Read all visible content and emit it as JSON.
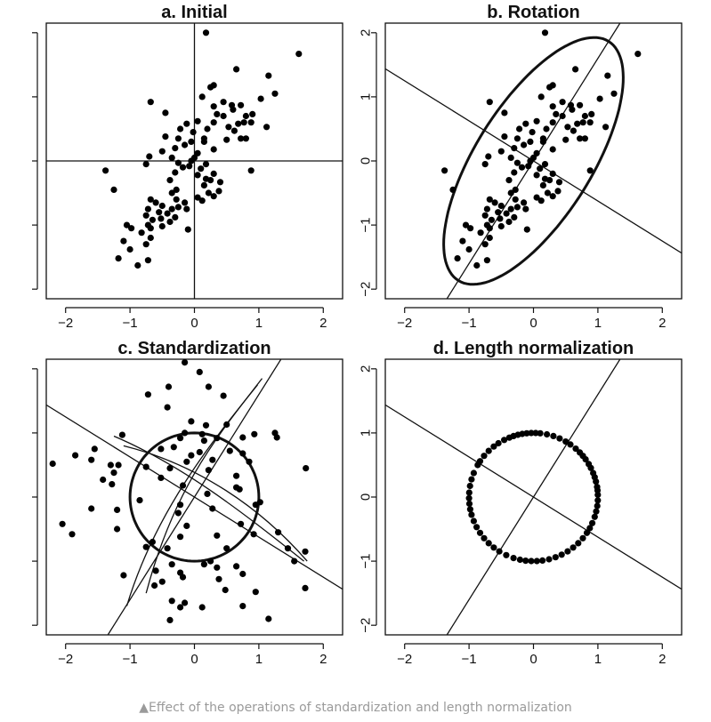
{
  "caption": "▲Effect of the operations of standardization and length normalization",
  "chart_data": [
    {
      "type": "scatter",
      "title": "a. Initial",
      "xlim": [
        -2.3,
        2.3
      ],
      "ylim": [
        -2.15,
        2.15
      ],
      "x_ticks": [
        -2,
        -1,
        0,
        1,
        2
      ],
      "y_ticks": [
        -2,
        -1,
        0,
        1,
        2
      ],
      "x_tick_labels": [
        "−2",
        "−1",
        "0",
        "1",
        "2"
      ],
      "y_tick_labels": [],
      "axes_lines": "crosshair",
      "points": [
        [
          0.18,
          2.0
        ],
        [
          1.62,
          1.67
        ],
        [
          0.65,
          1.43
        ],
        [
          1.15,
          1.33
        ],
        [
          0.3,
          1.18
        ],
        [
          0.25,
          1.15
        ],
        [
          1.25,
          1.05
        ],
        [
          0.12,
          1.0
        ],
        [
          1.03,
          0.97
        ],
        [
          -0.68,
          0.92
        ],
        [
          0.45,
          0.92
        ],
        [
          0.58,
          0.87
        ],
        [
          0.72,
          0.87
        ],
        [
          0.3,
          0.85
        ],
        [
          0.6,
          0.8
        ],
        [
          -0.45,
          0.75
        ],
        [
          0.35,
          0.73
        ],
        [
          0.9,
          0.73
        ],
        [
          0.45,
          0.7
        ],
        [
          0.8,
          0.7
        ],
        [
          0.05,
          0.62
        ],
        [
          -0.12,
          0.58
        ],
        [
          0.3,
          0.6
        ],
        [
          0.68,
          0.58
        ],
        [
          0.77,
          0.6
        ],
        [
          0.88,
          0.6
        ],
        [
          1.12,
          0.53
        ],
        [
          -0.22,
          0.5
        ],
        [
          0.2,
          0.5
        ],
        [
          0.53,
          0.53
        ],
        [
          -0.02,
          0.45
        ],
        [
          0.62,
          0.47
        ],
        [
          -0.25,
          0.35
        ],
        [
          -0.45,
          0.38
        ],
        [
          0.15,
          0.35
        ],
        [
          0.5,
          0.33
        ],
        [
          0.72,
          0.35
        ],
        [
          0.8,
          0.35
        ],
        [
          -0.05,
          0.3
        ],
        [
          0.15,
          0.3
        ],
        [
          -0.15,
          0.25
        ],
        [
          -0.3,
          0.2
        ],
        [
          0.3,
          0.18
        ],
        [
          -0.5,
          0.15
        ],
        [
          0.05,
          0.12
        ],
        [
          -0.7,
          0.07
        ],
        [
          -0.35,
          0.05
        ],
        [
          0.0,
          0.05
        ],
        [
          -0.05,
          0.0
        ],
        [
          -0.75,
          -0.05
        ],
        [
          -0.25,
          -0.03
        ],
        [
          -0.08,
          -0.08
        ],
        [
          0.18,
          -0.05
        ],
        [
          -0.18,
          -0.1
        ],
        [
          0.1,
          -0.12
        ],
        [
          -1.38,
          -0.15
        ],
        [
          0.88,
          -0.15
        ],
        [
          -0.3,
          -0.18
        ],
        [
          0.3,
          -0.2
        ],
        [
          0.05,
          -0.22
        ],
        [
          0.18,
          -0.28
        ],
        [
          -0.38,
          -0.3
        ],
        [
          0.25,
          -0.3
        ],
        [
          0.4,
          -0.33
        ],
        [
          0.15,
          -0.38
        ],
        [
          -1.25,
          -0.45
        ],
        [
          -0.28,
          -0.45
        ],
        [
          0.38,
          -0.47
        ],
        [
          -0.35,
          -0.5
        ],
        [
          0.22,
          -0.5
        ],
        [
          0.3,
          -0.55
        ],
        [
          0.05,
          -0.57
        ],
        [
          -0.68,
          -0.6
        ],
        [
          -0.28,
          -0.6
        ],
        [
          -0.6,
          -0.65
        ],
        [
          0.12,
          -0.62
        ],
        [
          -0.5,
          -0.7
        ],
        [
          -0.15,
          -0.65
        ],
        [
          -0.25,
          -0.72
        ],
        [
          -0.72,
          -0.75
        ],
        [
          -0.35,
          -0.75
        ],
        [
          -0.12,
          -0.75
        ],
        [
          -0.55,
          -0.8
        ],
        [
          -0.42,
          -0.82
        ],
        [
          -0.75,
          -0.85
        ],
        [
          -0.52,
          -0.9
        ],
        [
          -0.3,
          -0.88
        ],
        [
          -0.65,
          -0.92
        ],
        [
          -0.38,
          -0.95
        ],
        [
          -1.05,
          -1.0
        ],
        [
          -0.72,
          -1.0
        ],
        [
          -0.5,
          -1.02
        ],
        [
          -0.98,
          -1.05
        ],
        [
          -0.68,
          -1.05
        ],
        [
          -0.1,
          -1.07
        ],
        [
          -0.82,
          -1.12
        ],
        [
          -1.1,
          -1.25
        ],
        [
          -0.68,
          -1.2
        ],
        [
          -0.75,
          -1.3
        ],
        [
          -1.0,
          -1.38
        ],
        [
          -1.18,
          -1.52
        ],
        [
          -0.72,
          -1.55
        ],
        [
          -0.88,
          -1.63
        ]
      ]
    },
    {
      "type": "scatter",
      "title": "b. Rotation",
      "xlim": [
        -2.3,
        2.3
      ],
      "ylim": [
        -2.15,
        2.15
      ],
      "x_ticks": [
        -2,
        -1,
        0,
        1,
        2
      ],
      "y_ticks": [
        -2,
        -1,
        0,
        1,
        2
      ],
      "x_tick_labels": [
        "−2",
        "−1",
        "0",
        "1",
        "2"
      ],
      "y_tick_labels": [
        "−2",
        "−1",
        "0",
        "1",
        "2"
      ],
      "lines": [
        {
          "through": [
            0,
            0
          ],
          "slope": 1.6
        },
        {
          "through": [
            0,
            0
          ],
          "slope": -0.625
        }
      ],
      "ellipse": {
        "center": [
          0,
          0
        ],
        "semi_major": 2.2,
        "semi_minor": 0.9,
        "angle_deg": 58
      },
      "points": "same as a. Initial"
    },
    {
      "type": "scatter",
      "title": "c. Standardization",
      "xlim": [
        -2.3,
        2.3
      ],
      "ylim": [
        -2.15,
        2.15
      ],
      "x_ticks": [
        -2,
        -1,
        0,
        1,
        2
      ],
      "y_ticks": [
        -2,
        -1,
        0,
        1,
        2
      ],
      "x_tick_labels": [
        "−2",
        "−1",
        "0",
        "1",
        "2"
      ],
      "y_tick_labels": [],
      "lines": [
        {
          "through": [
            0,
            0
          ],
          "slope": 1.6
        },
        {
          "through": [
            0,
            0
          ],
          "slope": -0.625
        }
      ],
      "circle": {
        "center": [
          0,
          0
        ],
        "radius": 1
      },
      "points": [
        [
          -0.15,
          2.1
        ],
        [
          0.08,
          1.95
        ],
        [
          -0.4,
          1.72
        ],
        [
          0.22,
          1.72
        ],
        [
          -0.72,
          1.6
        ],
        [
          0.45,
          1.58
        ],
        [
          -0.42,
          1.4
        ],
        [
          -0.05,
          1.18
        ],
        [
          0.5,
          1.13
        ],
        [
          0.18,
          1.12
        ],
        [
          -0.15,
          1.0
        ],
        [
          -1.12,
          0.97
        ],
        [
          0.12,
          0.98
        ],
        [
          0.93,
          0.98
        ],
        [
          1.25,
          1.0
        ],
        [
          1.28,
          0.93
        ],
        [
          0.75,
          0.93
        ],
        [
          0.35,
          0.92
        ],
        [
          -0.22,
          0.92
        ],
        [
          0.15,
          0.88
        ],
        [
          -0.32,
          0.78
        ],
        [
          -1.55,
          0.75
        ],
        [
          -0.52,
          0.75
        ],
        [
          0.55,
          0.72
        ],
        [
          -1.85,
          0.65
        ],
        [
          -0.05,
          0.65
        ],
        [
          0.08,
          0.7
        ],
        [
          0.75,
          0.68
        ],
        [
          -1.6,
          0.58
        ],
        [
          -0.12,
          0.55
        ],
        [
          0.28,
          0.58
        ],
        [
          0.85,
          0.55
        ],
        [
          -2.2,
          0.52
        ],
        [
          -1.3,
          0.5
        ],
        [
          -1.18,
          0.5
        ],
        [
          -0.75,
          0.47
        ],
        [
          -0.38,
          0.45
        ],
        [
          1.73,
          0.45
        ],
        [
          0.22,
          0.42
        ],
        [
          -1.25,
          0.38
        ],
        [
          0.65,
          0.33
        ],
        [
          -0.52,
          0.3
        ],
        [
          -1.42,
          0.27
        ],
        [
          -1.28,
          0.2
        ],
        [
          -0.18,
          0.18
        ],
        [
          0.65,
          0.15
        ],
        [
          0.7,
          0.12
        ],
        [
          0.2,
          0.05
        ],
        [
          -0.85,
          -0.05
        ],
        [
          -0.22,
          -0.12
        ],
        [
          -1.6,
          -0.18
        ],
        [
          0.28,
          -0.18
        ],
        [
          0.95,
          -0.12
        ],
        [
          1.02,
          -0.08
        ],
        [
          -1.2,
          -0.2
        ],
        [
          -0.25,
          -0.25
        ],
        [
          -2.05,
          -0.42
        ],
        [
          -1.2,
          -0.5
        ],
        [
          -0.12,
          -0.45
        ],
        [
          0.72,
          -0.42
        ],
        [
          -1.9,
          -0.58
        ],
        [
          0.35,
          -0.6
        ],
        [
          -0.22,
          -0.62
        ],
        [
          0.92,
          -0.58
        ],
        [
          1.3,
          -0.55
        ],
        [
          -0.65,
          -0.7
        ],
        [
          -0.75,
          -0.78
        ],
        [
          -0.42,
          -0.8
        ],
        [
          0.5,
          -0.8
        ],
        [
          1.45,
          -0.8
        ],
        [
          1.72,
          -0.85
        ],
        [
          1.55,
          -1.0
        ],
        [
          0.25,
          -1.0
        ],
        [
          -0.35,
          -1.05
        ],
        [
          0.15,
          -1.05
        ],
        [
          0.65,
          -1.08
        ],
        [
          0.35,
          -1.1
        ],
        [
          -0.6,
          -1.15
        ],
        [
          -0.22,
          -1.18
        ],
        [
          0.75,
          -1.2
        ],
        [
          -1.1,
          -1.22
        ],
        [
          -0.18,
          -1.25
        ],
        [
          0.38,
          -1.28
        ],
        [
          -0.5,
          -1.32
        ],
        [
          -0.62,
          -1.38
        ],
        [
          0.48,
          -1.45
        ],
        [
          0.95,
          -1.48
        ],
        [
          1.72,
          -1.42
        ],
        [
          -0.35,
          -1.62
        ],
        [
          -0.15,
          -1.65
        ],
        [
          -0.22,
          -1.72
        ],
        [
          0.75,
          -1.7
        ],
        [
          0.12,
          -1.72
        ],
        [
          1.15,
          -1.9
        ],
        [
          -0.38,
          -1.92
        ]
      ]
    },
    {
      "type": "scatter",
      "title": "d. Length normalization",
      "xlim": [
        -2.3,
        2.3
      ],
      "ylim": [
        -2.15,
        2.15
      ],
      "x_ticks": [
        -2,
        -1,
        0,
        1,
        2
      ],
      "y_ticks": [
        -2,
        -1,
        0,
        1,
        2
      ],
      "x_tick_labels": [
        "−2",
        "−1",
        "0",
        "1",
        "2"
      ],
      "y_tick_labels": [
        "−2",
        "−1",
        "0",
        "1",
        "2"
      ],
      "lines": [
        {
          "through": [
            0,
            0
          ],
          "slope": 1.6
        },
        {
          "through": [
            0,
            0
          ],
          "slope": -0.625
        }
      ],
      "points_on_unit_circle_deg": [
        2,
        6,
        9,
        14,
        18,
        22,
        27,
        31,
        36,
        40,
        44,
        49,
        55,
        60,
        66,
        72,
        78,
        84,
        88,
        92,
        96,
        100,
        104,
        108,
        112,
        117,
        123,
        128,
        134,
        140,
        146,
        150,
        158,
        164,
        170,
        176,
        181,
        186,
        191,
        196,
        202,
        208,
        214,
        220,
        226,
        232,
        238,
        245,
        252,
        258,
        263,
        268,
        273,
        278,
        284,
        290,
        296,
        302,
        308,
        314,
        320,
        326,
        331,
        336,
        342,
        347,
        352,
        357
      ]
    }
  ]
}
